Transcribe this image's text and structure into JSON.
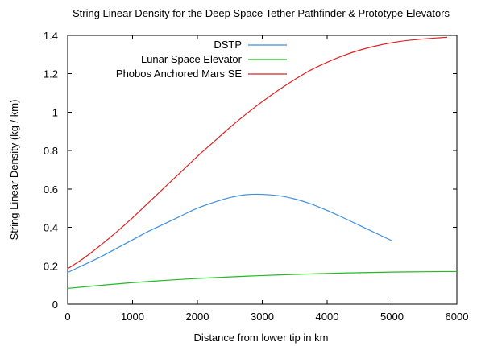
{
  "chart_data": {
    "type": "line",
    "title": "String Linear Density for the Deep Space Tether Pathfinder & Prototype Elevators",
    "xlabel": "Distance from lower tip in km",
    "ylabel": "String Linear Density (kg / km)",
    "xlim": [
      0,
      6000
    ],
    "ylim": [
      0,
      1.4
    ],
    "xticks": [
      "0",
      "1000",
      "2000",
      "3000",
      "4000",
      "5000",
      "6000"
    ],
    "yticks": [
      "0",
      "0.2",
      "0.4",
      "0.6",
      "0.8",
      "1",
      "1.2",
      "1.4"
    ],
    "legend_position": "top-center",
    "grid": false,
    "series": [
      {
        "name": "DSTP",
        "color": "#3f8fde",
        "x": [
          0,
          250,
          500,
          750,
          1000,
          1250,
          1500,
          1750,
          2000,
          2250,
          2500,
          2750,
          3000,
          3250,
          3500,
          3750,
          4000,
          4250,
          4500,
          4750,
          5000
        ],
        "y": [
          0.165,
          0.205,
          0.245,
          0.29,
          0.335,
          0.38,
          0.42,
          0.46,
          0.5,
          0.53,
          0.555,
          0.57,
          0.572,
          0.565,
          0.548,
          0.522,
          0.488,
          0.45,
          0.41,
          0.37,
          0.33
        ]
      },
      {
        "name": "Lunar Space Elevator",
        "color": "#22bb22",
        "x": [
          0,
          500,
          1000,
          1500,
          2000,
          2500,
          3000,
          3500,
          4000,
          4500,
          5000,
          5500,
          6000
        ],
        "y": [
          0.082,
          0.098,
          0.112,
          0.124,
          0.134,
          0.142,
          0.149,
          0.155,
          0.16,
          0.164,
          0.167,
          0.169,
          0.17
        ]
      },
      {
        "name": "Phobos Anchored Mars SE",
        "color": "#dd2222",
        "x": [
          0,
          250,
          500,
          750,
          1000,
          1250,
          1500,
          1750,
          2000,
          2250,
          2500,
          2750,
          3000,
          3250,
          3500,
          3750,
          4000,
          4250,
          4500,
          4750,
          5000,
          5250,
          5500,
          5750,
          5850
        ],
        "y": [
          0.185,
          0.24,
          0.305,
          0.375,
          0.45,
          0.53,
          0.61,
          0.69,
          0.77,
          0.845,
          0.92,
          0.99,
          1.055,
          1.115,
          1.17,
          1.22,
          1.26,
          1.295,
          1.323,
          1.345,
          1.362,
          1.374,
          1.382,
          1.388,
          1.39
        ]
      }
    ]
  }
}
